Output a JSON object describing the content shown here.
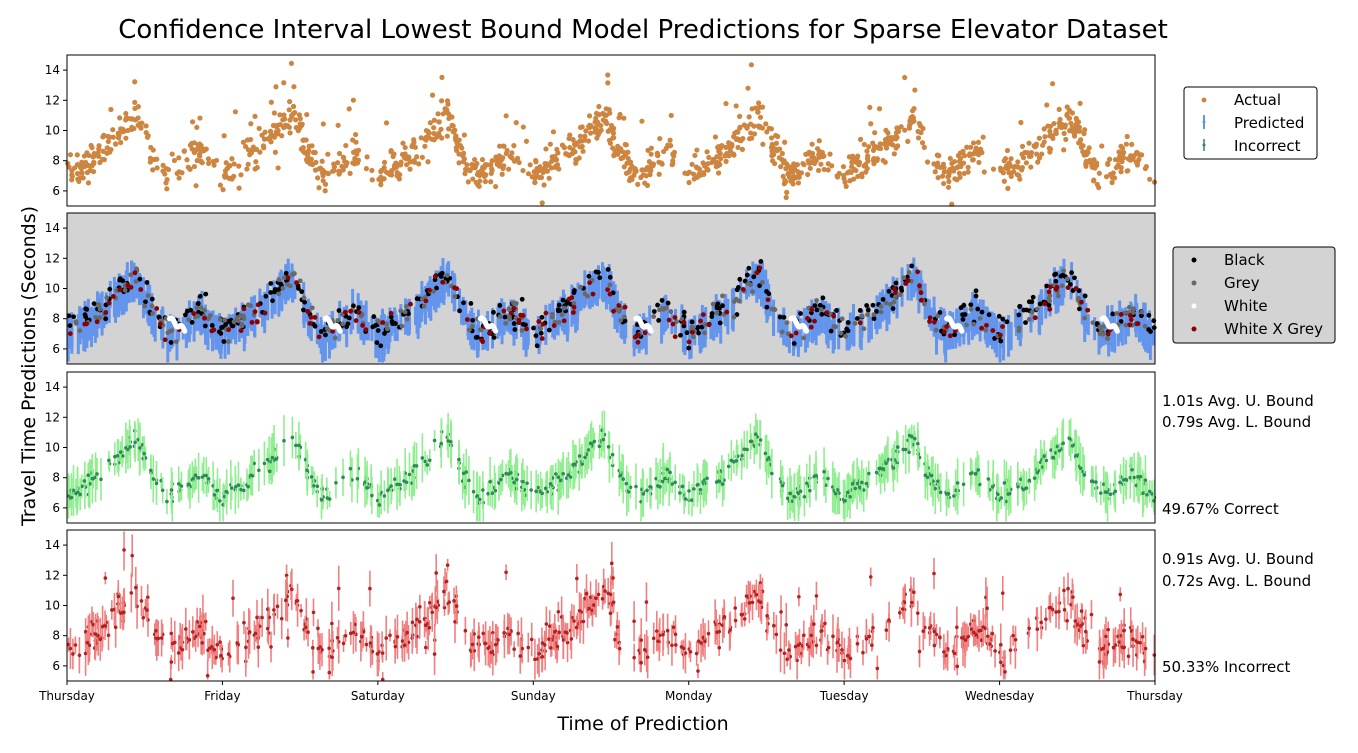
{
  "title": "Confidence Interval Lowest Bound Model Predictions for Sparse Elevator Dataset",
  "xlabel": "Time of Prediction",
  "ylabel": "Travel Time Predictions (Seconds)",
  "colors": {
    "actual": "#cd853f",
    "predicted_band": "#6495ed",
    "incorrect": "#2e8b57",
    "black": "#000000",
    "grey": "#696969",
    "white": "#ffffff",
    "white_x_grey": "#8b0000",
    "panel2_bg": "#d3d3d3",
    "correct_band": "#90ee90",
    "correct_point": "#2e8b57",
    "incorrect_band": "#f08080",
    "incorrect_point": "#b22222"
  },
  "legend1": {
    "items": [
      "Actual",
      "Predicted",
      "Incorrect"
    ]
  },
  "legend2": {
    "items": [
      "Black",
      "Grey",
      "White",
      "White X Grey"
    ]
  },
  "stats": {
    "correct": {
      "upper": "1.01s Avg. U. Bound",
      "lower": "0.79s Avg. L. Bound",
      "pct": "49.67% Correct"
    },
    "incorrect": {
      "upper": "0.91s Avg. U. Bound",
      "lower": "0.72s Avg. L. Bound",
      "pct": "50.33% Incorrect"
    }
  },
  "chart_data": [
    {
      "panel": "actual",
      "type": "scatter",
      "x_ticks": [
        "Thursday",
        "Friday",
        "Saturday",
        "Sunday",
        "Monday",
        "Tuesday",
        "Wednesday",
        "Thursday"
      ],
      "xlim": [
        0,
        7
      ],
      "ylim": [
        5,
        15
      ],
      "y_ticks": [
        6,
        8,
        10,
        12,
        14
      ],
      "series": [
        {
          "name": "Actual",
          "day_profile": [
            [
              0.0,
              7.0
            ],
            [
              0.25,
              8.8
            ],
            [
              0.45,
              11.0
            ],
            [
              0.55,
              8.5
            ],
            [
              0.65,
              7.0
            ],
            [
              0.85,
              8.5
            ],
            [
              1.0,
              7.0
            ]
          ]
        }
      ]
    },
    {
      "panel": "predicted",
      "type": "scatter",
      "xlim": [
        0,
        7
      ],
      "ylim": [
        5,
        15
      ],
      "y_ticks": [
        6,
        8,
        10,
        12,
        14
      ],
      "grid": false,
      "series": [
        {
          "name": "Predicted",
          "kind": "error-band",
          "band_width": 1.0
        },
        {
          "name": "Black"
        },
        {
          "name": "Grey"
        },
        {
          "name": "White"
        },
        {
          "name": "White X Grey"
        }
      ]
    },
    {
      "panel": "correct",
      "type": "scatter",
      "xlim": [
        0,
        7
      ],
      "ylim": [
        5,
        15
      ],
      "y_ticks": [
        6,
        8,
        10,
        12,
        14
      ],
      "avg_upper_bound_s": 1.01,
      "avg_lower_bound_s": 0.79,
      "percent": 49.67
    },
    {
      "panel": "incorrect",
      "type": "scatter",
      "xlim": [
        0,
        7
      ],
      "ylim": [
        5,
        15
      ],
      "y_ticks": [
        6,
        8,
        10,
        12,
        14
      ],
      "avg_upper_bound_s": 0.91,
      "avg_lower_bound_s": 0.72,
      "percent": 50.33
    }
  ]
}
